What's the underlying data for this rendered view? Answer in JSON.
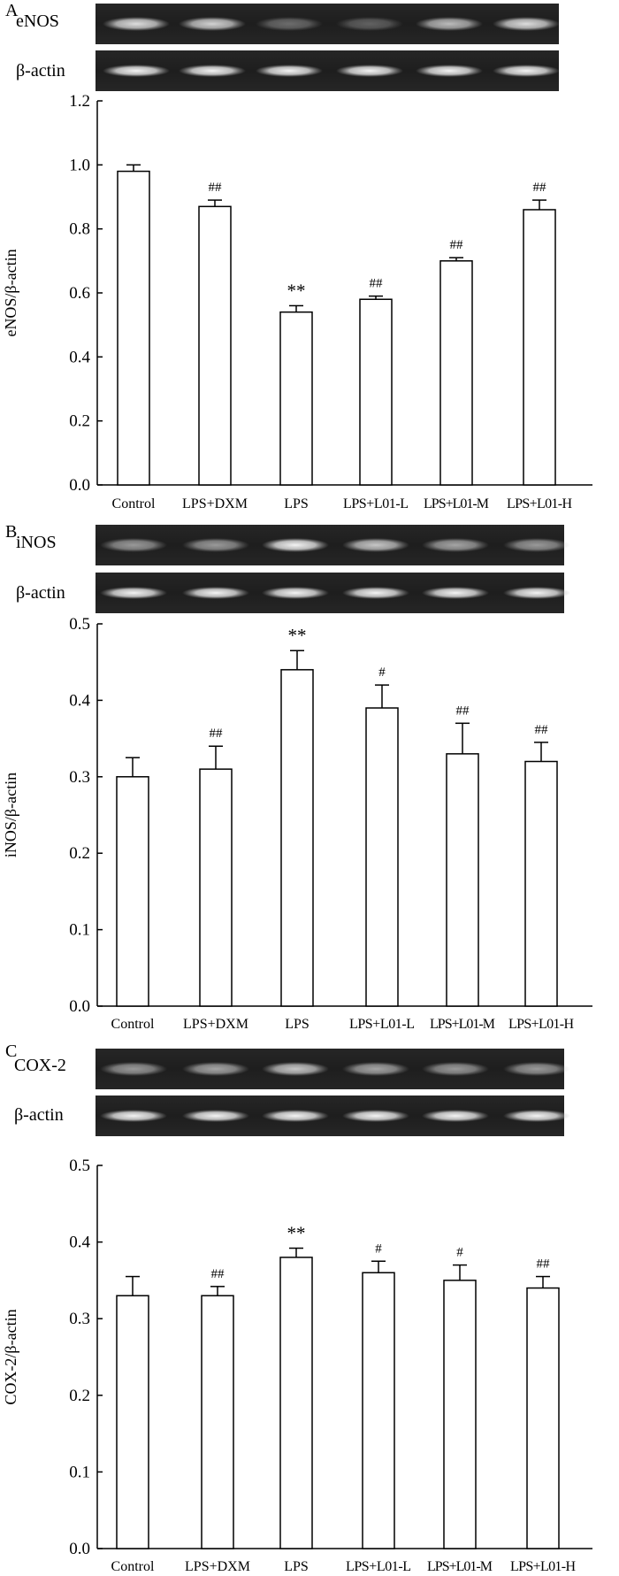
{
  "chart_data": [
    {
      "type": "bar",
      "panel": "A",
      "gel_labels": [
        "eNOS",
        "β-actin"
      ],
      "ylabel": "eNOS/β-actin",
      "ylim": [
        0,
        1.2
      ],
      "yticks": [
        "0.0",
        "0.2",
        "0.4",
        "0.6",
        "0.8",
        "1.0",
        "1.2"
      ],
      "categories": [
        "Control",
        "LPS+DXM",
        "LPS",
        "LPS+L01-L",
        "LPS+L01-M",
        "LPS+L01-H"
      ],
      "values": [
        0.98,
        0.87,
        0.54,
        0.58,
        0.7,
        0.86
      ],
      "errors": [
        0.02,
        0.02,
        0.02,
        0.01,
        0.01,
        0.03
      ],
      "annotations": [
        "",
        "##",
        "**",
        "##",
        "##",
        "##"
      ]
    },
    {
      "type": "bar",
      "panel": "B",
      "gel_labels": [
        "iNOS",
        "β-actin"
      ],
      "ylabel": "iNOS/β-actin",
      "ylim": [
        0,
        0.5
      ],
      "yticks": [
        "0.0",
        "0.1",
        "0.2",
        "0.3",
        "0.4",
        "0.5"
      ],
      "categories": [
        "Control",
        "LPS+DXM",
        "LPS",
        "LPS+L01-L",
        "LPS+L01-M",
        "LPS+L01-H"
      ],
      "values": [
        0.3,
        0.31,
        0.44,
        0.39,
        0.33,
        0.32
      ],
      "errors": [
        0.025,
        0.03,
        0.025,
        0.03,
        0.04,
        0.025
      ],
      "annotations": [
        "",
        "##",
        "**",
        "#",
        "##",
        "##"
      ]
    },
    {
      "type": "bar",
      "panel": "C",
      "gel_labels": [
        "COX-2",
        "β-actin"
      ],
      "ylabel": "COX-2/β-actin",
      "ylim": [
        0,
        0.5
      ],
      "yticks": [
        "0.0",
        "0.1",
        "0.2",
        "0.3",
        "0.4",
        "0.5"
      ],
      "categories": [
        "Control",
        "LPS+DXM",
        "LPS",
        "LPS+L01-L",
        "LPS+L01-M",
        "LPS+L01-H"
      ],
      "values": [
        0.33,
        0.33,
        0.38,
        0.36,
        0.35,
        0.34
      ],
      "errors": [
        0.025,
        0.012,
        0.012,
        0.015,
        0.02,
        0.015
      ],
      "annotations": [
        "",
        "##",
        "**",
        "#",
        "#",
        "##"
      ]
    }
  ]
}
